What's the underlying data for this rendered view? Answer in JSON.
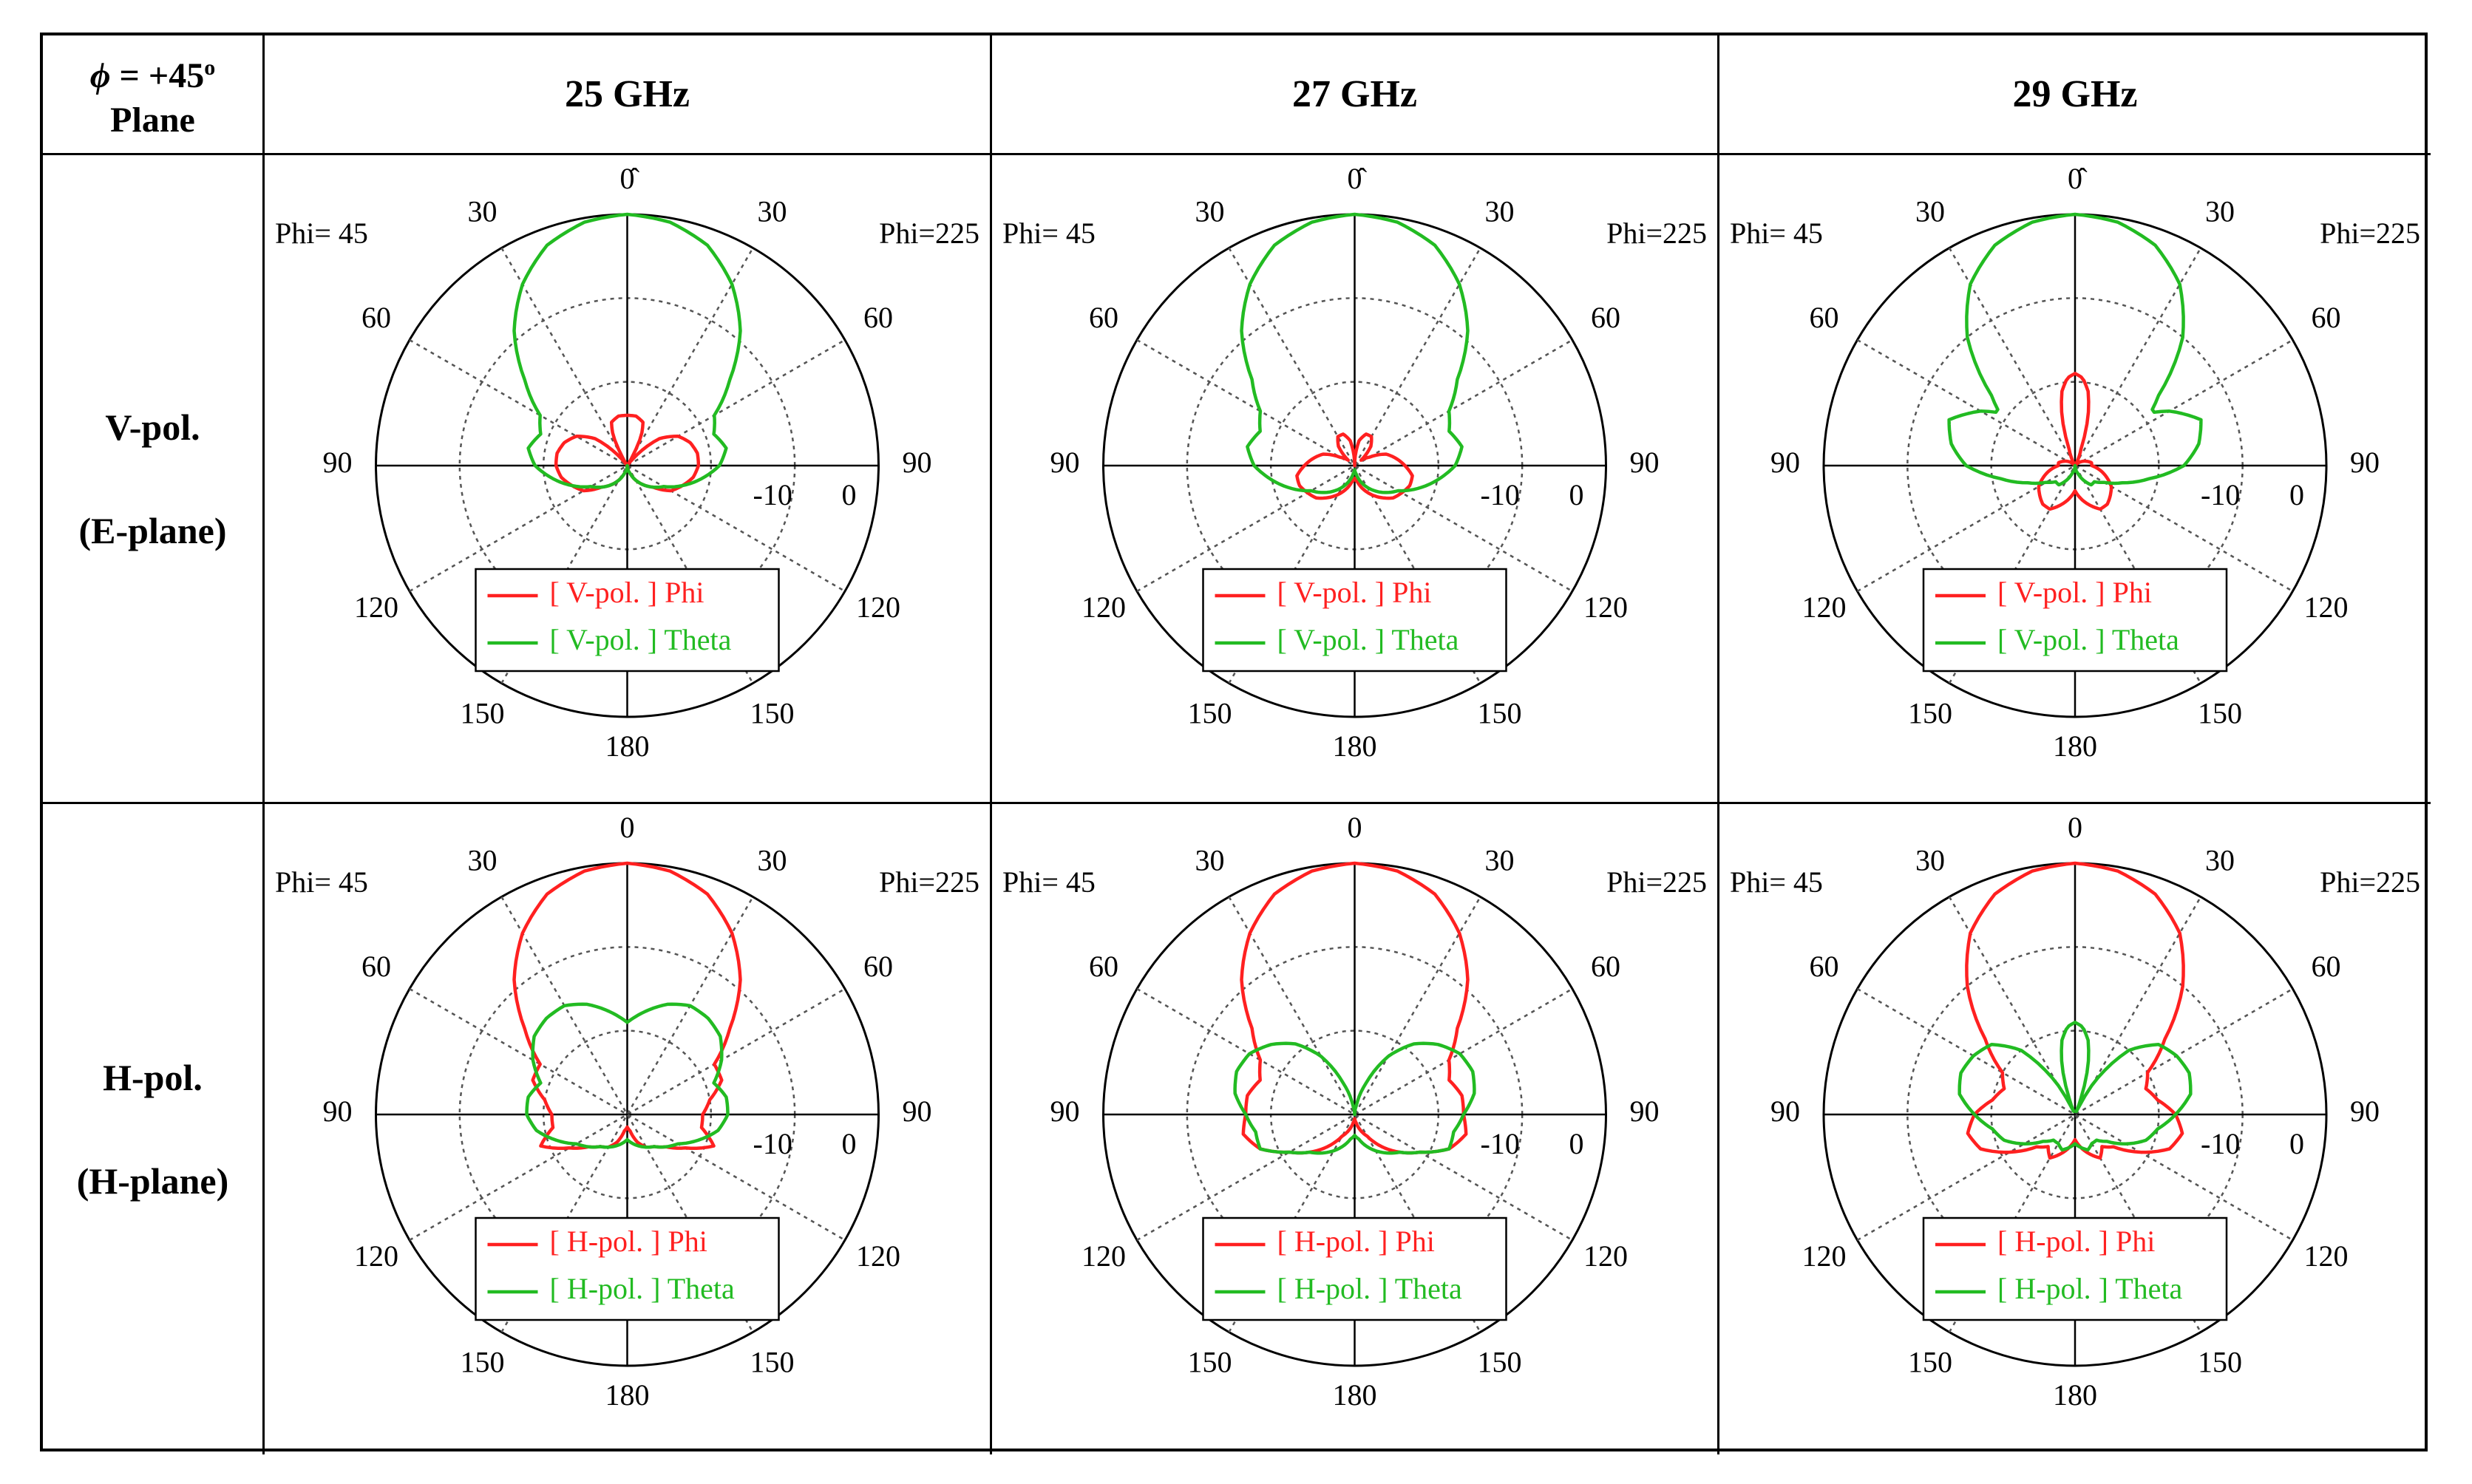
{
  "table": {
    "corner_line1_symbol": "ϕ",
    "corner_line1_rest": " = +45",
    "corner_line1_sup": "o",
    "corner_line2": "Plane",
    "col_headers": [
      "25 GHz",
      "27 GHz",
      "29 GHz"
    ],
    "row_headers": [
      {
        "line1": "V-pol.",
        "line2": "(E-plane)"
      },
      {
        "line1": "H-pol.",
        "line2": "(H-plane)"
      }
    ]
  },
  "colors": {
    "phi": "#ff2020",
    "theta": "#22bb22",
    "axis": "#000000",
    "grid": "#555555"
  },
  "chart_data": [
    {
      "type": "polar-line",
      "row": 0,
      "col": 0,
      "left_label": "Phi= 45",
      "right_label": "Phi=225",
      "top_tick": "0̂",
      "angle_ticks": [
        "30",
        "60",
        "90",
        "120",
        "150",
        "180"
      ],
      "radial_ticks": [
        "-10",
        "0"
      ],
      "r_range_dB": [
        -30,
        0
      ],
      "series": [
        {
          "name": "[ V-pol. ] Phi",
          "color_key": "phi",
          "theta_deg": [
            0,
            10,
            20,
            25,
            30,
            35,
            40,
            45,
            50,
            60,
            70,
            80,
            90,
            100,
            110,
            120,
            130,
            140,
            150,
            160,
            170,
            180
          ],
          "gain_dB": [
            -24,
            -24,
            -24.5,
            -26,
            -29,
            -30,
            -29,
            -27,
            -25,
            -23,
            -22,
            -21.5,
            -21.5,
            -22,
            -23,
            -24,
            -26,
            -27,
            -28,
            -29,
            -29.5,
            -30
          ]
        },
        {
          "name": "[ V-pol. ] Theta",
          "color_key": "theta",
          "theta_deg": [
            0,
            10,
            20,
            30,
            40,
            50,
            60,
            70,
            80,
            90,
            100,
            110,
            120,
            130,
            140,
            150,
            160,
            170,
            180
          ],
          "gain_dB": [
            0,
            -0.5,
            -2,
            -5,
            -9,
            -14,
            -18,
            -19,
            -18,
            -19,
            -21,
            -23,
            -25,
            -26,
            -27,
            -28,
            -29,
            -29.5,
            -30
          ]
        }
      ],
      "legend": "bottom-center"
    },
    {
      "type": "polar-line",
      "row": 0,
      "col": 1,
      "left_label": "Phi= 45",
      "right_label": "Phi=225",
      "top_tick": "0̂",
      "angle_ticks": [
        "30",
        "60",
        "90",
        "120",
        "150",
        "180"
      ],
      "radial_ticks": [
        "-10",
        "0"
      ],
      "r_range_dB": [
        -30,
        0
      ],
      "series": [
        {
          "name": "[ V-pol. ] Phi",
          "color_key": "phi",
          "theta_deg": [
            0,
            10,
            20,
            30,
            40,
            50,
            60,
            70,
            80,
            90,
            100,
            110,
            120,
            130,
            140,
            150,
            160,
            170,
            180
          ],
          "gain_dB": [
            -30,
            -27,
            -26,
            -26,
            -27,
            -29,
            -28,
            -26,
            -25,
            -24,
            -23,
            -23,
            -23.5,
            -24,
            -25,
            -26,
            -27,
            -28,
            -28.5
          ]
        },
        {
          "name": "[ V-pol. ] Theta",
          "color_key": "theta",
          "theta_deg": [
            0,
            10,
            20,
            30,
            40,
            50,
            60,
            70,
            80,
            90,
            100,
            110,
            120,
            130,
            140,
            150,
            160,
            170,
            180
          ],
          "gain_dB": [
            0,
            -0.5,
            -2,
            -5,
            -9,
            -14,
            -17,
            -18,
            -17,
            -18,
            -20,
            -22,
            -24,
            -25,
            -26,
            -27,
            -28,
            -29,
            -29.5
          ]
        }
      ],
      "legend": "bottom-center"
    },
    {
      "type": "polar-line",
      "row": 0,
      "col": 2,
      "left_label": "Phi= 45",
      "right_label": "Phi=225",
      "top_tick": "0̂",
      "angle_ticks": [
        "30",
        "60",
        "90",
        "120",
        "150",
        "180"
      ],
      "radial_ticks": [
        "-10",
        "0"
      ],
      "r_range_dB": [
        -30,
        0
      ],
      "series": [
        {
          "name": "[ V-pol. ] Phi",
          "color_key": "phi",
          "theta_deg": [
            0,
            5,
            10,
            15,
            20,
            30,
            40,
            60,
            80,
            90,
            100,
            120,
            140,
            150,
            160,
            170,
            180
          ],
          "gain_dB": [
            -19,
            -19.5,
            -21,
            -24,
            -28,
            -30,
            -30,
            -29,
            -28,
            -28,
            -27,
            -25,
            -24,
            -24,
            -25,
            -26,
            -27
          ]
        },
        {
          "name": "[ V-pol. ] Theta",
          "color_key": "theta",
          "theta_deg": [
            0,
            10,
            20,
            30,
            40,
            50,
            55,
            60,
            70,
            80,
            90,
            100,
            110,
            120,
            130,
            140,
            150,
            160,
            170,
            180
          ],
          "gain_dB": [
            0,
            -0.5,
            -2,
            -5,
            -10,
            -17,
            -19,
            -17,
            -14,
            -15,
            -17,
            -21,
            -24,
            -26,
            -27,
            -27,
            -28,
            -29,
            -29.5,
            -30
          ]
        }
      ],
      "legend": "bottom-center"
    },
    {
      "type": "polar-line",
      "row": 1,
      "col": 0,
      "left_label": "Phi= 45",
      "right_label": "Phi=225",
      "top_tick": "0",
      "angle_ticks": [
        "30",
        "60",
        "90",
        "120",
        "150",
        "180"
      ],
      "radial_ticks": [
        "-10",
        "0"
      ],
      "r_range_dB": [
        -30,
        0
      ],
      "series": [
        {
          "name": "[ H-pol. ] Phi",
          "color_key": "phi",
          "theta_deg": [
            0,
            10,
            20,
            30,
            40,
            50,
            60,
            70,
            80,
            90,
            100,
            110,
            120,
            130,
            140,
            150,
            160,
            170,
            180
          ],
          "gain_dB": [
            0,
            -0.5,
            -2,
            -5,
            -9,
            -14,
            -18,
            -18,
            -20,
            -21,
            -21,
            -19,
            -22,
            -24,
            -25,
            -25.5,
            -26.5,
            -28,
            -28.5
          ]
        },
        {
          "name": "[ H-pol. ] Theta",
          "color_key": "theta",
          "theta_deg": [
            0,
            10,
            20,
            30,
            40,
            50,
            60,
            70,
            80,
            90,
            100,
            110,
            120,
            130,
            140,
            150,
            160,
            170,
            180
          ],
          "gain_dB": [
            -19,
            -17.5,
            -16,
            -15,
            -15,
            -15.5,
            -17,
            -19,
            -18,
            -18,
            -19,
            -21,
            -23,
            -24,
            -25,
            -25.5,
            -26,
            -26.5,
            -27
          ]
        }
      ],
      "legend": "bottom-center"
    },
    {
      "type": "polar-line",
      "row": 1,
      "col": 1,
      "left_label": "Phi= 45",
      "right_label": "Phi=225",
      "top_tick": "0",
      "angle_ticks": [
        "30",
        "60",
        "90",
        "120",
        "150",
        "180"
      ],
      "radial_ticks": [
        "-10",
        "0"
      ],
      "r_range_dB": [
        -30,
        0
      ],
      "series": [
        {
          "name": "[ H-pol. ] Phi",
          "color_key": "phi",
          "theta_deg": [
            0,
            10,
            20,
            30,
            40,
            50,
            60,
            70,
            80,
            90,
            100,
            110,
            120,
            130,
            140,
            150,
            160,
            170,
            180
          ],
          "gain_dB": [
            0,
            -0.5,
            -2,
            -5,
            -9,
            -14,
            -17,
            -18,
            -17,
            -17,
            -16.5,
            -18,
            -21,
            -23,
            -25,
            -27,
            -28,
            -29,
            -29.5
          ]
        },
        {
          "name": "[ H-pol. ] Theta",
          "color_key": "theta",
          "theta_deg": [
            0,
            10,
            20,
            30,
            40,
            50,
            60,
            70,
            80,
            90,
            100,
            110,
            120,
            130,
            140,
            150,
            160,
            170,
            180
          ],
          "gain_dB": [
            -30,
            -29,
            -26,
            -22,
            -19,
            -17,
            -15.5,
            -15,
            -15.5,
            -17,
            -18,
            -18,
            -21,
            -23,
            -24,
            -25,
            -26,
            -27,
            -27.5
          ]
        }
      ],
      "legend": "bottom-center"
    },
    {
      "type": "polar-line",
      "row": 1,
      "col": 2,
      "left_label": "Phi= 45",
      "right_label": "Phi=225",
      "top_tick": "0",
      "angle_ticks": [
        "30",
        "60",
        "90",
        "120",
        "150",
        "180"
      ],
      "radial_ticks": [
        "-10",
        "0"
      ],
      "r_range_dB": [
        -30,
        0
      ],
      "series": [
        {
          "name": "[ H-pol. ] Phi",
          "color_key": "phi",
          "theta_deg": [
            0,
            10,
            20,
            30,
            40,
            50,
            60,
            70,
            80,
            90,
            100,
            110,
            120,
            130,
            140,
            150,
            160,
            170,
            180
          ],
          "gain_dB": [
            0,
            -0.5,
            -2,
            -5,
            -10,
            -16,
            -20,
            -21,
            -20,
            -18,
            -17,
            -18,
            -21,
            -24,
            -25,
            -24,
            -25,
            -26,
            -27
          ]
        },
        {
          "name": "[ H-pol. ] Theta",
          "color_key": "theta",
          "theta_deg": [
            0,
            5,
            10,
            15,
            20,
            25,
            30,
            40,
            50,
            60,
            70,
            80,
            90,
            100,
            110,
            120,
            130,
            140,
            150,
            160,
            170,
            180
          ],
          "gain_dB": [
            -19,
            -19.5,
            -21,
            -24,
            -28,
            -30,
            -26,
            -20,
            -17,
            -16,
            -15.5,
            -16,
            -18,
            -20,
            -21,
            -23,
            -25,
            -26,
            -26,
            -25.5,
            -26,
            -26.5
          ]
        }
      ],
      "legend": "bottom-center"
    }
  ]
}
